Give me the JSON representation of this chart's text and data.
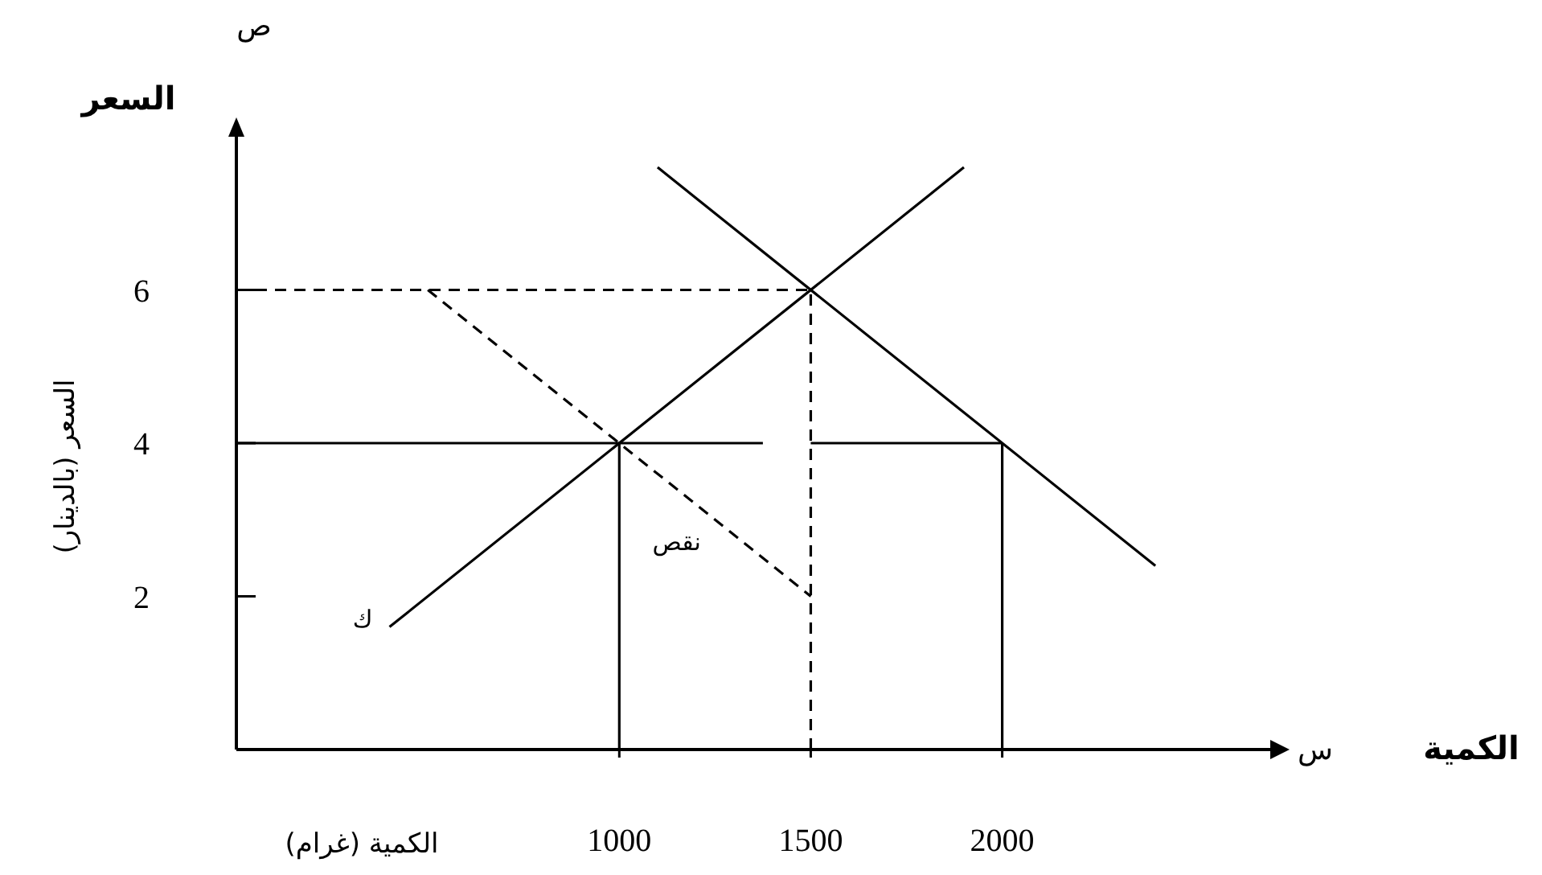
{
  "chart_data": {
    "type": "line",
    "xlabel": "الكمية (غرام)",
    "ylabel": "السعر (بالدينار)",
    "xlim": [
      0,
      2700
    ],
    "ylim": [
      0,
      8
    ],
    "xticks": [
      1000,
      1500,
      2000
    ],
    "yticks": [
      2,
      4,
      6
    ],
    "grid": false,
    "annotations": [
      "ص",
      "السعر",
      "س",
      "الكمية",
      "نقص",
      "ك"
    ],
    "series": [
      {
        "color": "#000000",
        "line_style": "solid",
        "x": [
          400,
          1900
        ],
        "values": [
          1.6,
          7.6
        ]
      },
      {
        "color": "#000000",
        "line_style": "solid",
        "x": [
          1100,
          2400
        ],
        "values": [
          7.6,
          2.4
        ]
      },
      {
        "color": "#000000",
        "line_style": "dashed",
        "x": [
          500,
          1500
        ],
        "values": [
          6,
          2
        ]
      },
      {
        "color": "#000000",
        "line_style": "solid",
        "x": [
          0,
          1375
        ],
        "values": [
          4,
          4
        ]
      },
      {
        "color": "#000000",
        "line_style": "solid",
        "x": [
          1500,
          2000
        ],
        "values": [
          4,
          4
        ]
      },
      {
        "color": "#000000",
        "line_style": "solid",
        "x": [
          1000,
          1000
        ],
        "values": [
          0,
          4
        ]
      },
      {
        "color": "#000000",
        "line_style": "solid",
        "x": [
          2000,
          2000
        ],
        "values": [
          0,
          4
        ]
      },
      {
        "color": "#000000",
        "line_style": "dashed",
        "x": [
          0,
          1500
        ],
        "values": [
          6,
          6
        ]
      },
      {
        "color": "#000000",
        "line_style": "dashed",
        "x": [
          1500,
          1500
        ],
        "values": [
          0,
          6
        ]
      }
    ]
  }
}
